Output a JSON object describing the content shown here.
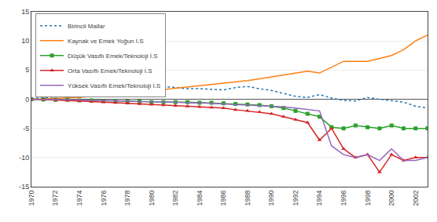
{
  "chart_data": {
    "type": "line",
    "x": [
      1970,
      1971,
      1972,
      1973,
      1974,
      1975,
      1976,
      1977,
      1978,
      1979,
      1980,
      1981,
      1982,
      1983,
      1984,
      1985,
      1986,
      1987,
      1988,
      1989,
      1990,
      1991,
      1992,
      1993,
      1994,
      1995,
      1996,
      1997,
      1998,
      1999,
      2000,
      2001,
      2002,
      2003
    ],
    "series": [
      {
        "name": "Birincil Mallar",
        "line_style": "dotted",
        "values": [
          0.1,
          0.2,
          0.4,
          0.6,
          0.8,
          1.0,
          1.3,
          1.6,
          1.8,
          2.0,
          2.1,
          2.2,
          2.0,
          1.8,
          1.8,
          1.7,
          1.6,
          2.0,
          2.2,
          1.8,
          1.5,
          1.0,
          0.5,
          0.3,
          0.8,
          0.2,
          -0.2,
          -0.3,
          0.3,
          0.0,
          -0.3,
          -0.5,
          -1.2,
          -1.5
        ]
      },
      {
        "name": "Kaynak ve Emek Yoğun İ.S",
        "line_style": "solid",
        "values": [
          0.0,
          0.05,
          0.1,
          0.2,
          0.3,
          0.5,
          0.6,
          0.7,
          0.9,
          1.1,
          1.3,
          1.6,
          1.9,
          2.1,
          2.3,
          2.5,
          2.7,
          3.0,
          3.2,
          3.5,
          3.8,
          4.2,
          4.5,
          4.8,
          4.5,
          5.5,
          6.5,
          6.5,
          6.5,
          7.0,
          7.5,
          8.5,
          10.0,
          11.0
        ]
      },
      {
        "name": "Düşük Vasıflı Emek/Teknoloji İ.S",
        "line_style": "solid",
        "marker": "square",
        "values": [
          0.0,
          -0.05,
          -0.1,
          -0.1,
          -0.2,
          -0.2,
          -0.3,
          -0.3,
          -0.4,
          -0.4,
          -0.5,
          -0.5,
          -0.5,
          -0.5,
          -0.6,
          -0.6,
          -0.7,
          -0.8,
          -0.9,
          -1.0,
          -1.2,
          -1.5,
          -2.0,
          -2.5,
          -3.0,
          -4.8,
          -5.0,
          -4.5,
          -4.8,
          -5.0,
          -4.5,
          -5.0,
          -5.0,
          -5.0
        ]
      },
      {
        "name": "Orta Vasıflı Emek/Teknoloji İ.S",
        "line_style": "solid",
        "marker": "triangle",
        "values": [
          0.0,
          -0.05,
          -0.1,
          -0.2,
          -0.3,
          -0.4,
          -0.5,
          -0.6,
          -0.7,
          -0.8,
          -0.9,
          -1.0,
          -1.1,
          -1.2,
          -1.3,
          -1.4,
          -1.5,
          -1.8,
          -2.0,
          -2.2,
          -2.5,
          -3.0,
          -3.5,
          -4.0,
          -7.0,
          -5.0,
          -8.5,
          -10.0,
          -9.5,
          -12.5,
          -9.5,
          -10.5,
          -10.0,
          -10.0
        ]
      },
      {
        "name": "Yüksek Vasıflı Emek/Teknoloji İ.S",
        "line_style": "solid",
        "values": [
          0.0,
          0.0,
          -0.05,
          -0.1,
          -0.1,
          -0.2,
          -0.2,
          -0.3,
          -0.3,
          -0.4,
          -0.4,
          -0.5,
          -0.5,
          -0.6,
          -0.6,
          -0.7,
          -0.8,
          -0.9,
          -1.0,
          -1.1,
          -1.2,
          -1.3,
          -1.5,
          -1.8,
          -2.0,
          -8.0,
          -9.5,
          -10.0,
          -9.5,
          -10.5,
          -8.5,
          -10.5,
          -10.5,
          -10.0
        ]
      }
    ],
    "xlim": [
      1970,
      2003
    ],
    "xticks": [
      1970,
      1972,
      1974,
      1976,
      1978,
      1980,
      1982,
      1984,
      1986,
      1988,
      1990,
      1992,
      1994,
      1996,
      1998,
      2000,
      2002
    ],
    "ylim": [
      -15,
      15
    ],
    "yticks": [
      -15,
      -10,
      -5,
      0,
      5,
      10,
      15
    ],
    "grid": true,
    "legend": "upper left"
  }
}
